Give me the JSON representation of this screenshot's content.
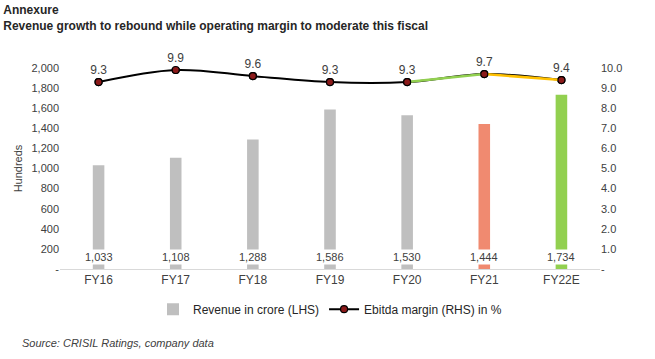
{
  "chart_data": {
    "type": "bar",
    "title": "Annexure",
    "subtitle": "Revenue growth to rebound while operating margin to moderate this fiscal",
    "source": "Source: CRISIL Ratings, company data",
    "y_label": "Hundreds",
    "categories": [
      "FY16",
      "FY17",
      "FY18",
      "FY19",
      "FY20",
      "FY21",
      "FY22E"
    ],
    "series": [
      {
        "name": "Revenue in crore (LHS)",
        "type": "bar",
        "values": [
          1033,
          1108,
          1288,
          1586,
          1530,
          1444,
          1734
        ],
        "value_labels": [
          "1,033",
          "1,108",
          "1,288",
          "1,586",
          "1,530",
          "1,444",
          "1,734"
        ],
        "colors": [
          "#bfbfbf",
          "#bfbfbf",
          "#bfbfbf",
          "#bfbfbf",
          "#bfbfbf",
          "#f08a70",
          "#92d050"
        ]
      },
      {
        "name": "Ebitda margin (RHS) in %",
        "type": "line",
        "axis": "y2",
        "values": [
          9.3,
          9.9,
          9.6,
          9.3,
          9.3,
          9.7,
          9.4
        ],
        "color": "#000000",
        "colors": [
          "#000000",
          "#000000",
          "#000000",
          "#000000",
          "#000000",
          "#92d050",
          "#ffc000"
        ],
        "marker": "circle",
        "line_style": "smooth"
      }
    ],
    "ylim": [
      0,
      2000
    ],
    "yticks": [
      {
        "value": 0,
        "label": "-"
      },
      200,
      400,
      600,
      800,
      {
        "value": 1000,
        "label": "1,000"
      },
      {
        "value": 1200,
        "label": "1,200"
      },
      {
        "value": 1400,
        "label": "1,400"
      },
      {
        "value": 1600,
        "label": "1,600"
      },
      {
        "value": 1800,
        "label": "1,800"
      },
      {
        "value": 2000,
        "label": "2,000"
      }
    ],
    "y2lim": [
      0,
      10
    ],
    "y2ticks": [
      {
        "value": 0,
        "label": "-"
      },
      {
        "value": 1,
        "label": "1.0"
      },
      {
        "value": 2,
        "label": "2.0"
      },
      {
        "value": 3,
        "label": "3.0"
      },
      {
        "value": 4,
        "label": "4.0"
      },
      {
        "value": 5,
        "label": "5.0"
      },
      {
        "value": 6,
        "label": "6.0"
      },
      {
        "value": 7,
        "label": "7.0"
      },
      {
        "value": 8,
        "label": "8.0"
      },
      {
        "value": 9,
        "label": "9.0"
      },
      {
        "value": 10,
        "label": "10.0"
      }
    ],
    "grid": false,
    "legend": "bottom",
    "data_labels": true
  }
}
